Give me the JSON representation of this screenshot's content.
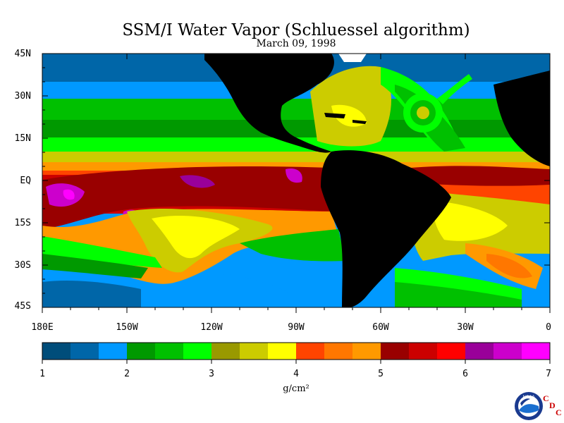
{
  "title": "SSM/I Water Vapor (Schluessel algorithm)",
  "date": "March 09, 1998",
  "lat_labels": [
    "45N",
    "30N",
    "15N",
    "EQ",
    "15S",
    "30S",
    "45S"
  ],
  "lon_labels": [
    "180E",
    "150W",
    "120W",
    "90W",
    "60W",
    "30W",
    "0"
  ],
  "colorbar": {
    "colors": [
      "#004d7a",
      "#0066a8",
      "#0099ff",
      "#009900",
      "#00c000",
      "#00ff00",
      "#999900",
      "#cccc00",
      "#ffff00",
      "#ff4400",
      "#ff7700",
      "#ff9900",
      "#990000",
      "#cc0000",
      "#ff0000",
      "#990099",
      "#cc00cc",
      "#ff00ff"
    ],
    "tick_labels": [
      "1",
      "2",
      "3",
      "4",
      "5",
      "6",
      "7"
    ],
    "units": "g/cm²",
    "range": [
      1,
      7
    ]
  },
  "colors": {
    "land": "#000000",
    "missing": "#ffffff"
  },
  "logo": {
    "agency": "NOAA",
    "letters": [
      "C",
      "D",
      "C"
    ]
  }
}
